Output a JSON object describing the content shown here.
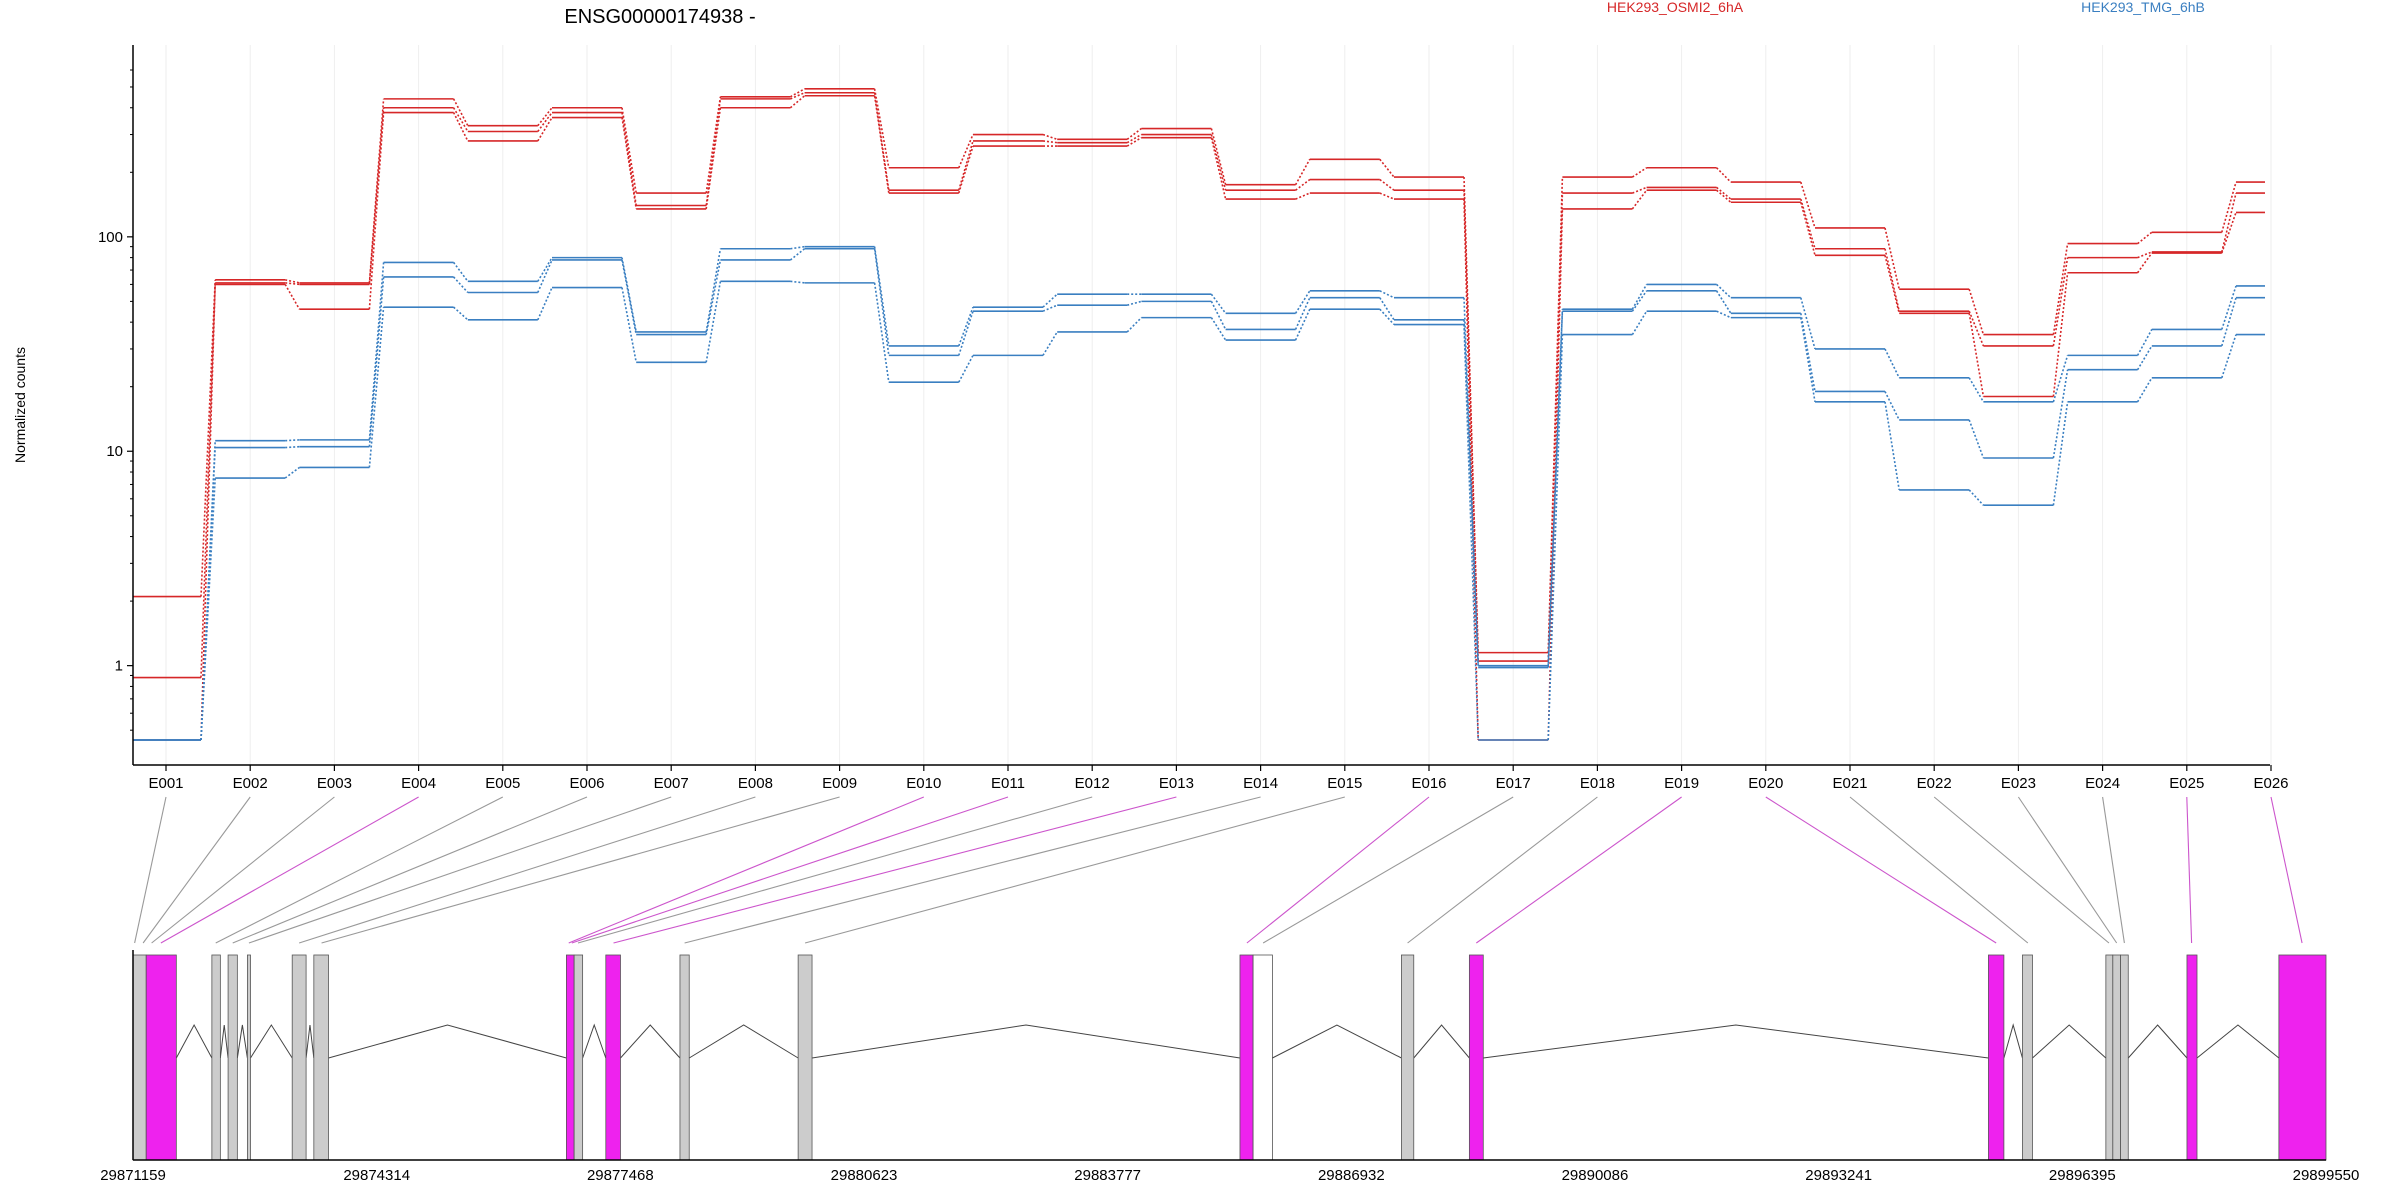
{
  "title": "ENSG00000174938 -",
  "ylabel": "Normalized counts",
  "legend": [
    {
      "label": "HEK293_OSMI2_6hA",
      "color": "#d62728"
    },
    {
      "label": "HEK293_TMG_6hB",
      "color": "#3a7fc1"
    }
  ],
  "colors": {
    "osmi": "#d62728",
    "tmg": "#3a7fc1",
    "exon_highlight": "#ee22ee",
    "exon_normal": "#cccccc",
    "connector_highlight": "#cc55cc",
    "connector_normal": "#999999",
    "grid": "#eeeeee"
  },
  "chart_data": {
    "type": "line",
    "scale": "log",
    "ylim": [
      0.45,
      600
    ],
    "yticks": [
      "1",
      "10",
      "100"
    ],
    "ytick_values": [
      1,
      10,
      100
    ],
    "categories": [
      "E001",
      "E002",
      "E003",
      "E004",
      "E005",
      "E006",
      "E007",
      "E008",
      "E009",
      "E010",
      "E011",
      "E012",
      "E013",
      "E014",
      "E015",
      "E016",
      "E017",
      "E018",
      "E019",
      "E020",
      "E021",
      "E022",
      "E023",
      "E024",
      "E025",
      "E026"
    ],
    "series": [
      {
        "name": "HEK293_OSMI2_6hA",
        "group": "osmi",
        "values": [
          2.1,
          63,
          61,
          440,
          330,
          400,
          160,
          450,
          490,
          210,
          300,
          285,
          320,
          175,
          230,
          190,
          1.15,
          190,
          210,
          180,
          110,
          57,
          35,
          93,
          105,
          180
        ]
      },
      {
        "name": "HEK293_OSMI2_6hA",
        "group": "osmi",
        "values": [
          0.88,
          61,
          60,
          400,
          310,
          380,
          140,
          440,
          470,
          165,
          280,
          275,
          300,
          165,
          185,
          165,
          1.05,
          160,
          170,
          150,
          88,
          45,
          31,
          80,
          85,
          160
        ]
      },
      {
        "name": "HEK293_OSMI2_6hA",
        "group": "osmi",
        "values": [
          0.45,
          60,
          46,
          380,
          280,
          360,
          135,
          400,
          455,
          160,
          265,
          265,
          290,
          150,
          160,
          150,
          0.45,
          135,
          165,
          145,
          82,
          44,
          18,
          68,
          84,
          130
        ]
      },
      {
        "name": "HEK293_TMG_6hB",
        "group": "tmg",
        "values": [
          0.45,
          11.2,
          11.3,
          76,
          62,
          80,
          36,
          88,
          90,
          31,
          47,
          54,
          54,
          44,
          56,
          52,
          1.0,
          46,
          60,
          52,
          30,
          22,
          17,
          28,
          37,
          59
        ]
      },
      {
        "name": "HEK293_TMG_6hB",
        "group": "tmg",
        "values": [
          0.45,
          10.4,
          10.5,
          65,
          55,
          78,
          35,
          78,
          88,
          28,
          45,
          48,
          50,
          37,
          52,
          41,
          0.98,
          45,
          56,
          44,
          19,
          14,
          9.3,
          24,
          31,
          52
        ]
      },
      {
        "name": "HEK293_TMG_6hB",
        "group": "tmg",
        "values": [
          0.45,
          7.5,
          8.4,
          47,
          41,
          58,
          26,
          62,
          61,
          21,
          28,
          36,
          42,
          33,
          46,
          39,
          0.45,
          35,
          45,
          42,
          17,
          6.6,
          5.6,
          17,
          22,
          35
        ]
      }
    ],
    "genome": {
      "range": [
        29871159,
        29899550
      ],
      "ticks": [
        29871159,
        29874314,
        29877468,
        29880623,
        29883777,
        29886932,
        29890086,
        29893241,
        29896395,
        29899550
      ],
      "tick_labels": [
        "29871159",
        "29874314",
        "29877468",
        "29880623",
        "29883777",
        "29886932",
        "29890086",
        "29893241",
        "29896395",
        "29899550"
      ],
      "exons": [
        {
          "start": 29871159,
          "end": 29871330,
          "fill": "normal"
        },
        {
          "start": 29871330,
          "end": 29871720,
          "fill": "highlight"
        },
        {
          "start": 29872180,
          "end": 29872290,
          "fill": "normal"
        },
        {
          "start": 29872390,
          "end": 29872510,
          "fill": "normal"
        },
        {
          "start": 29872640,
          "end": 29872680,
          "fill": "normal"
        },
        {
          "start": 29873220,
          "end": 29873400,
          "fill": "normal"
        },
        {
          "start": 29873500,
          "end": 29873690,
          "fill": "normal"
        },
        {
          "start": 29876770,
          "end": 29876870,
          "fill": "highlight"
        },
        {
          "start": 29876870,
          "end": 29876980,
          "fill": "normal"
        },
        {
          "start": 29877280,
          "end": 29877470,
          "fill": "highlight"
        },
        {
          "start": 29878240,
          "end": 29878360,
          "fill": "normal"
        },
        {
          "start": 29879770,
          "end": 29879950,
          "fill": "normal"
        },
        {
          "start": 29885490,
          "end": 29885660,
          "fill": "highlight"
        },
        {
          "start": 29885660,
          "end": 29885910,
          "fill": "empty"
        },
        {
          "start": 29887580,
          "end": 29887740,
          "fill": "normal"
        },
        {
          "start": 29888460,
          "end": 29888640,
          "fill": "highlight"
        },
        {
          "start": 29895180,
          "end": 29895380,
          "fill": "highlight"
        },
        {
          "start": 29895620,
          "end": 29895750,
          "fill": "normal"
        },
        {
          "start": 29896700,
          "end": 29896790,
          "fill": "normal"
        },
        {
          "start": 29896790,
          "end": 29896890,
          "fill": "normal"
        },
        {
          "start": 29896890,
          "end": 29896990,
          "fill": "normal"
        },
        {
          "start": 29897750,
          "end": 29897880,
          "fill": "highlight"
        },
        {
          "start": 29898940,
          "end": 29899550,
          "fill": "highlight"
        }
      ],
      "connectors": [
        {
          "bin": "E001",
          "pos": 29871180,
          "type": "normal"
        },
        {
          "bin": "E002",
          "pos": 29871290,
          "type": "normal"
        },
        {
          "bin": "E003",
          "pos": 29871400,
          "type": "normal"
        },
        {
          "bin": "E004",
          "pos": 29871520,
          "type": "highlight"
        },
        {
          "bin": "E005",
          "pos": 29872230,
          "type": "normal"
        },
        {
          "bin": "E006",
          "pos": 29872450,
          "type": "normal"
        },
        {
          "bin": "E007",
          "pos": 29872660,
          "type": "normal"
        },
        {
          "bin": "E008",
          "pos": 29873310,
          "type": "normal"
        },
        {
          "bin": "E009",
          "pos": 29873600,
          "type": "normal"
        },
        {
          "bin": "E010",
          "pos": 29876800,
          "type": "highlight"
        },
        {
          "bin": "E011",
          "pos": 29876840,
          "type": "highlight"
        },
        {
          "bin": "E012",
          "pos": 29876920,
          "type": "normal"
        },
        {
          "bin": "E013",
          "pos": 29877380,
          "type": "highlight"
        },
        {
          "bin": "E014",
          "pos": 29878300,
          "type": "normal"
        },
        {
          "bin": "E015",
          "pos": 29879860,
          "type": "normal"
        },
        {
          "bin": "E016",
          "pos": 29885580,
          "type": "highlight"
        },
        {
          "bin": "E017",
          "pos": 29885790,
          "type": "normal"
        },
        {
          "bin": "E018",
          "pos": 29887660,
          "type": "normal"
        },
        {
          "bin": "E019",
          "pos": 29888550,
          "type": "highlight"
        },
        {
          "bin": "E020",
          "pos": 29895280,
          "type": "highlight"
        },
        {
          "bin": "E021",
          "pos": 29895690,
          "type": "normal"
        },
        {
          "bin": "E022",
          "pos": 29896740,
          "type": "normal"
        },
        {
          "bin": "E023",
          "pos": 29896840,
          "type": "normal"
        },
        {
          "bin": "E024",
          "pos": 29896940,
          "type": "normal"
        },
        {
          "bin": "E025",
          "pos": 29897810,
          "type": "highlight"
        },
        {
          "bin": "E026",
          "pos": 29899240,
          "type": "highlight"
        }
      ]
    }
  }
}
